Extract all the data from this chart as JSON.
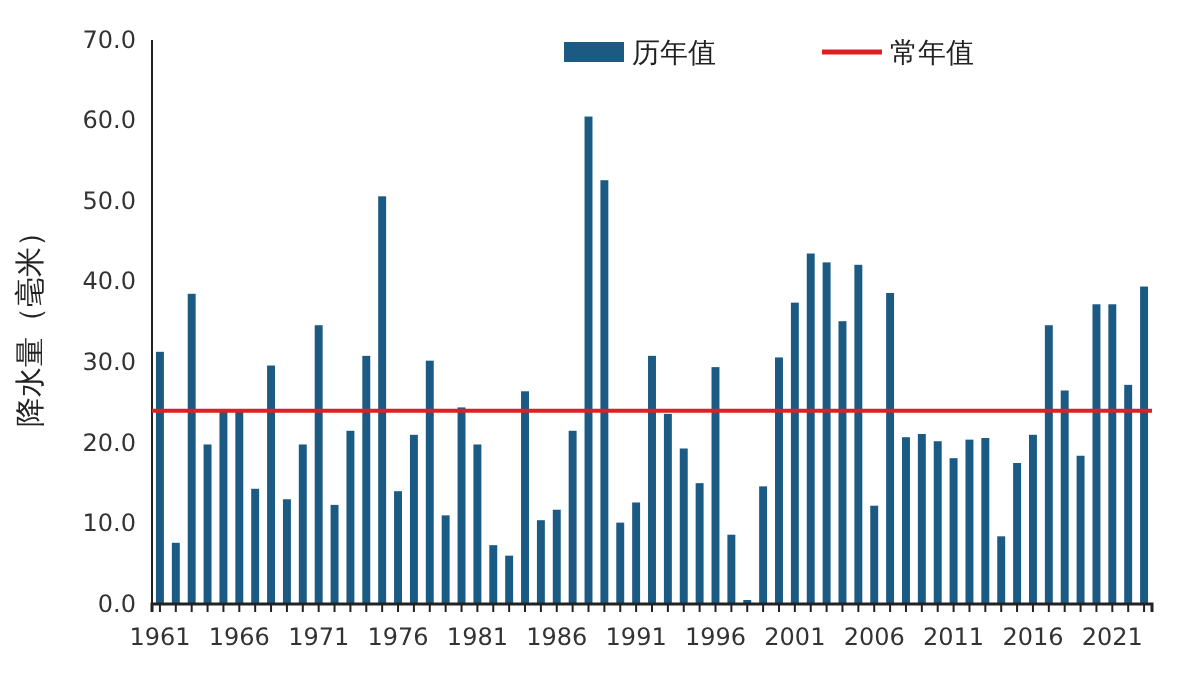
{
  "chart_data": {
    "type": "bar",
    "ylabel": "降水量（毫米）",
    "categories": [
      "1961",
      null,
      null,
      null,
      null,
      "1966",
      null,
      null,
      null,
      null,
      "1971",
      null,
      null,
      null,
      null,
      "1976",
      null,
      null,
      null,
      null,
      "1981",
      null,
      null,
      null,
      null,
      "1986",
      null,
      null,
      null,
      null,
      "1991",
      null,
      null,
      null,
      null,
      "1996",
      null,
      null,
      null,
      null,
      "2001",
      null,
      null,
      null,
      null,
      "2006",
      null,
      null,
      null,
      null,
      "2011",
      null,
      null,
      null,
      null,
      "2016",
      null,
      null,
      null,
      null,
      "2021",
      null,
      null
    ],
    "series": [
      {
        "name": "历年值",
        "color": "#1b5a82",
        "values": [
          31.3,
          7.6,
          38.5,
          19.8,
          24.0,
          24.0,
          14.3,
          29.6,
          13.0,
          19.8,
          34.6,
          12.3,
          21.5,
          30.8,
          50.6,
          14.0,
          21.0,
          30.2,
          11.0,
          24.4,
          19.8,
          7.3,
          6.0,
          26.4,
          10.4,
          11.7,
          21.5,
          60.5,
          52.6,
          10.1,
          12.6,
          30.8,
          23.6,
          19.3,
          15.0,
          29.4,
          8.6,
          0.5,
          14.6,
          30.6,
          37.4,
          43.5,
          42.4,
          35.1,
          42.1,
          12.2,
          38.6,
          20.7,
          21.1,
          20.2,
          18.1,
          20.4,
          20.6,
          8.4,
          17.5,
          21.0,
          34.6,
          26.5,
          18.4,
          37.2,
          37.2,
          27.2,
          39.4
        ]
      }
    ],
    "ref_lines": [
      {
        "axis": "y",
        "value": 24.0,
        "label": "常年值",
        "color": "#e02020"
      }
    ],
    "ylim": [
      0,
      70
    ],
    "yticks": [
      {
        "value": 0,
        "label": "0.0"
      },
      {
        "value": 10,
        "label": "10.0"
      },
      {
        "value": 20,
        "label": "20.0"
      },
      {
        "value": 30,
        "label": "30.0"
      },
      {
        "value": 40,
        "label": "40.0"
      },
      {
        "value": 50,
        "label": "50.0"
      },
      {
        "value": 60,
        "label": "60.0"
      },
      {
        "value": 70,
        "label": "70.0"
      }
    ],
    "grid": false,
    "legend": "top"
  }
}
